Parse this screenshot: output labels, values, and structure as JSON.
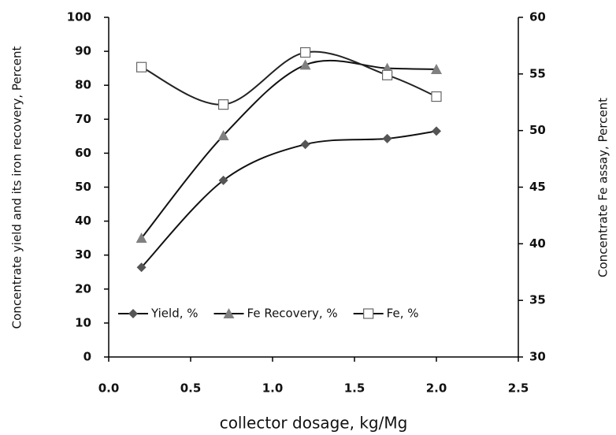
{
  "chart_data": {
    "type": "line",
    "x_label": "collector dosage, kg/Mg",
    "y_label": "Concentrate yield and its iron recovery, Percent",
    "y2_label": "Concentrate Fe assay, Percent",
    "x": [
      0.2,
      0.7,
      1.2,
      1.7,
      2.0
    ],
    "series": [
      {
        "name": "Yield, %",
        "color": "#555555",
        "marker": "diamond",
        "values": [
          26.4,
          52,
          62.6,
          64.3,
          66.5
        ]
      },
      {
        "name": "Fe Recovery, %",
        "color": "#808080",
        "marker": "triangle",
        "values": [
          35,
          65.2,
          86,
          85,
          84.7
        ]
      },
      {
        "name": "Fe, %",
        "color": "#222222",
        "marker": "square",
        "axis": "y2",
        "values": [
          55.6,
          52.3,
          56.9,
          54.9,
          53.0
        ]
      }
    ],
    "xlim": [
      0,
      2.5
    ],
    "xticks": [
      {
        "value": 0,
        "label": "0.0"
      },
      {
        "value": 0.5,
        "label": "0.5"
      },
      {
        "value": 1,
        "label": "1.0"
      },
      {
        "value": 1.5,
        "label": "1.5"
      },
      {
        "value": 2,
        "label": "2.0"
      },
      {
        "value": 2.5,
        "label": "2.5"
      }
    ],
    "ylim": [
      0,
      100
    ],
    "yticks": [
      0,
      10,
      20,
      30,
      40,
      50,
      60,
      70,
      80,
      90,
      100
    ],
    "y2lim": [
      30,
      60
    ],
    "y2ticks": [
      30,
      35,
      40,
      45,
      50,
      55,
      60
    ],
    "smooth": true,
    "legend": "bottom-left"
  }
}
